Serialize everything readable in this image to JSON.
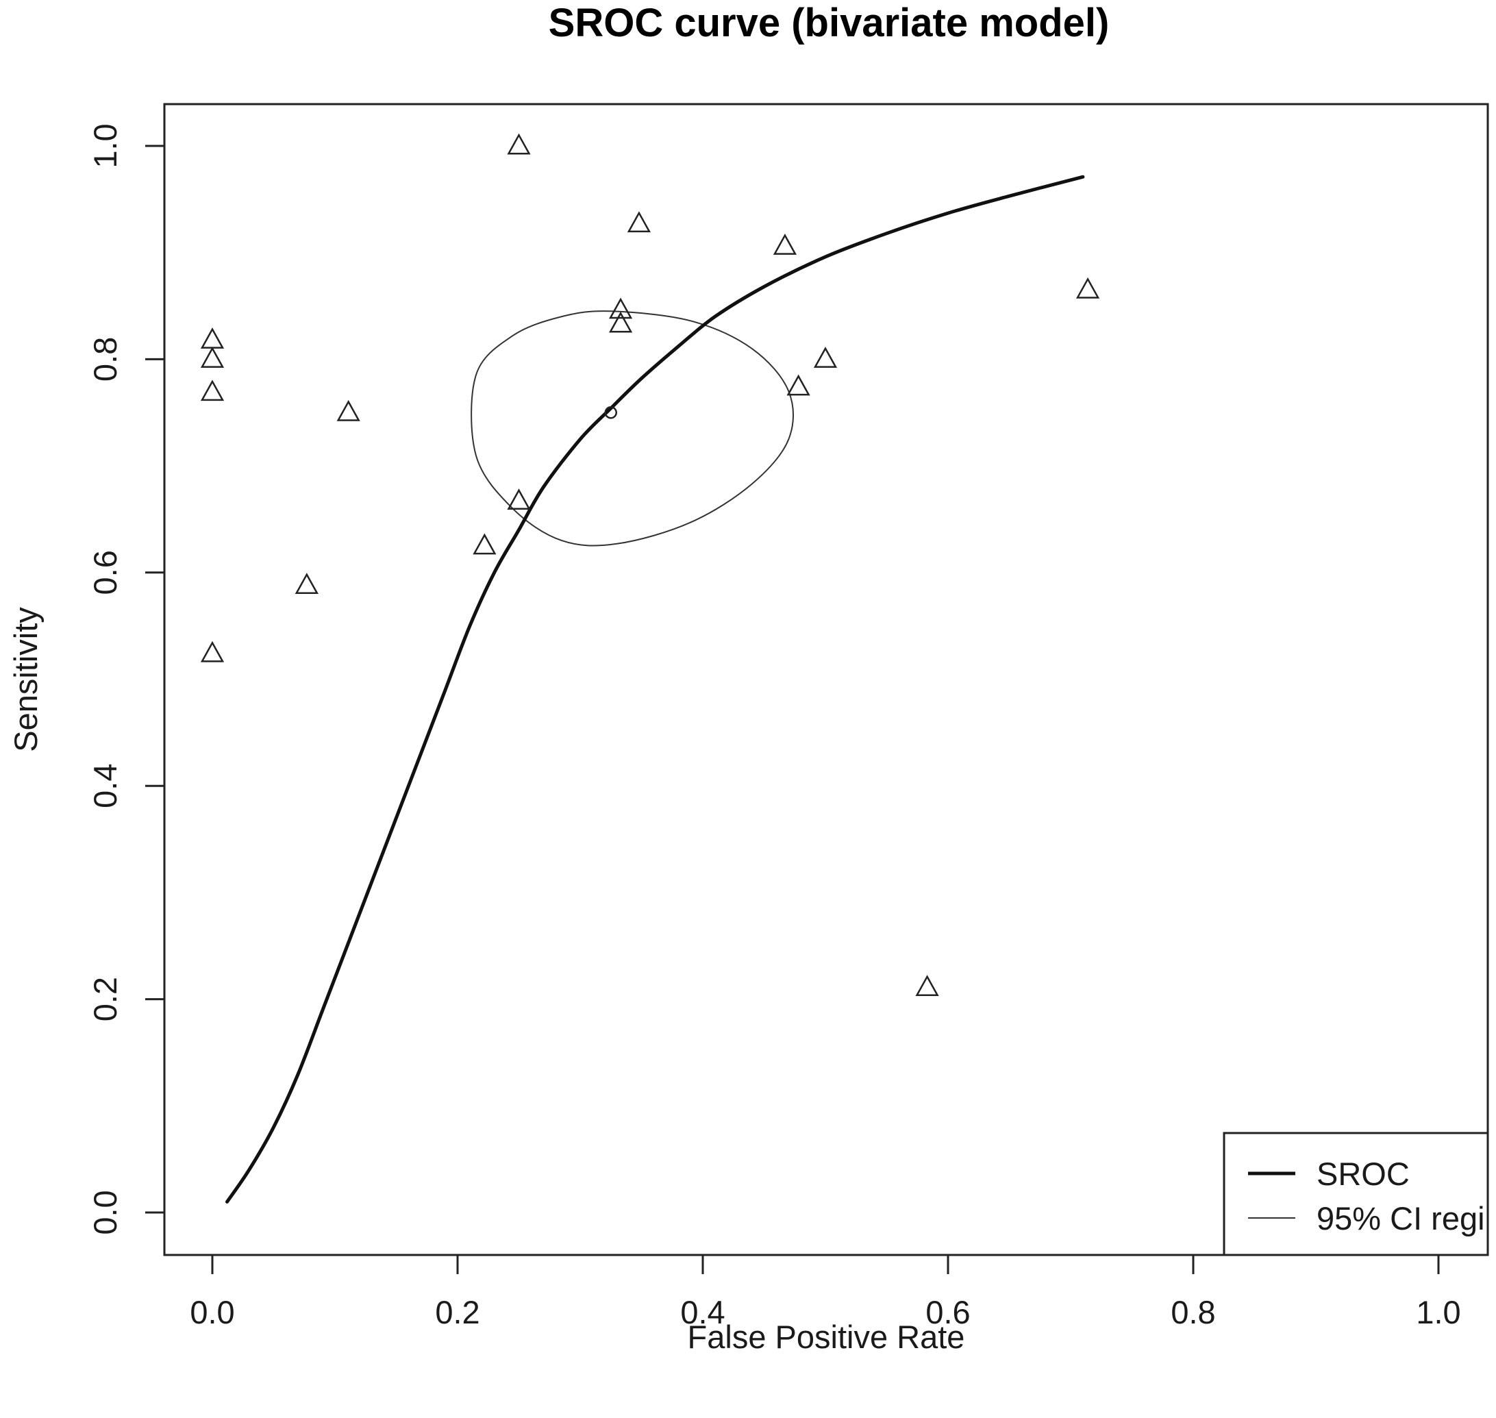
{
  "chart_data": {
    "type": "scatter",
    "title": "SROC curve (bivariate model)",
    "xlabel": "False Positive Rate",
    "ylabel": "Sensitivity",
    "xlim": [
      0,
      1
    ],
    "ylim": [
      0,
      1
    ],
    "x_ticks": [
      "0.0",
      "0.2",
      "0.4",
      "0.6",
      "0.8",
      "1.0"
    ],
    "y_ticks": [
      "0.0",
      "0.2",
      "0.4",
      "0.6",
      "0.8",
      "1.0"
    ],
    "grid": false,
    "legend": {
      "position": "bottom-right",
      "entries": [
        "SROC",
        "95% CI regi"
      ]
    },
    "series": [
      {
        "name": "",
        "marker": "triangle",
        "points": [
          {
            "x": 0.25,
            "y": 1.0
          },
          {
            "x": 0.348,
            "y": 0.927
          },
          {
            "x": 0.467,
            "y": 0.906
          },
          {
            "x": 0.714,
            "y": 0.865
          },
          {
            "x": 0.333,
            "y": 0.846
          },
          {
            "x": 0.333,
            "y": 0.833
          },
          {
            "x": 0.0,
            "y": 0.818
          },
          {
            "x": 0.0,
            "y": 0.8
          },
          {
            "x": 0.5,
            "y": 0.8
          },
          {
            "x": 0.478,
            "y": 0.774
          },
          {
            "x": 0.0,
            "y": 0.769
          },
          {
            "x": 0.111,
            "y": 0.75
          },
          {
            "x": 0.25,
            "y": 0.667
          },
          {
            "x": 0.222,
            "y": 0.625
          },
          {
            "x": 0.077,
            "y": 0.588
          },
          {
            "x": 0.0,
            "y": 0.524
          },
          {
            "x": 0.583,
            "y": 0.211
          }
        ]
      },
      {
        "name": "SROC",
        "type": "line",
        "points": [
          {
            "x": 0.012,
            "y": 0.01
          },
          {
            "x": 0.03,
            "y": 0.04
          },
          {
            "x": 0.05,
            "y": 0.08
          },
          {
            "x": 0.07,
            "y": 0.13
          },
          {
            "x": 0.09,
            "y": 0.19
          },
          {
            "x": 0.11,
            "y": 0.25
          },
          {
            "x": 0.13,
            "y": 0.31
          },
          {
            "x": 0.15,
            "y": 0.37
          },
          {
            "x": 0.17,
            "y": 0.43
          },
          {
            "x": 0.19,
            "y": 0.49
          },
          {
            "x": 0.21,
            "y": 0.55
          },
          {
            "x": 0.23,
            "y": 0.6
          },
          {
            "x": 0.25,
            "y": 0.64
          },
          {
            "x": 0.27,
            "y": 0.68
          },
          {
            "x": 0.3,
            "y": 0.725
          },
          {
            "x": 0.325,
            "y": 0.754
          },
          {
            "x": 0.35,
            "y": 0.782
          },
          {
            "x": 0.38,
            "y": 0.812
          },
          {
            "x": 0.41,
            "y": 0.84
          },
          {
            "x": 0.45,
            "y": 0.868
          },
          {
            "x": 0.5,
            "y": 0.896
          },
          {
            "x": 0.55,
            "y": 0.918
          },
          {
            "x": 0.6,
            "y": 0.937
          },
          {
            "x": 0.65,
            "y": 0.953
          },
          {
            "x": 0.71,
            "y": 0.971
          }
        ]
      },
      {
        "name": "95% CI regi",
        "type": "closed-curve",
        "points": [
          {
            "x": 0.325,
            "y": 0.845
          },
          {
            "x": 0.39,
            "y": 0.836
          },
          {
            "x": 0.44,
            "y": 0.81
          },
          {
            "x": 0.47,
            "y": 0.77
          },
          {
            "x": 0.47,
            "y": 0.725
          },
          {
            "x": 0.44,
            "y": 0.683
          },
          {
            "x": 0.39,
            "y": 0.647
          },
          {
            "x": 0.33,
            "y": 0.627
          },
          {
            "x": 0.285,
            "y": 0.63
          },
          {
            "x": 0.245,
            "y": 0.66
          },
          {
            "x": 0.215,
            "y": 0.71
          },
          {
            "x": 0.215,
            "y": 0.785
          },
          {
            "x": 0.245,
            "y": 0.822
          },
          {
            "x": 0.285,
            "y": 0.84
          }
        ]
      },
      {
        "name": "",
        "marker": "circle",
        "points": [
          {
            "x": 0.325,
            "y": 0.75
          }
        ]
      }
    ]
  }
}
